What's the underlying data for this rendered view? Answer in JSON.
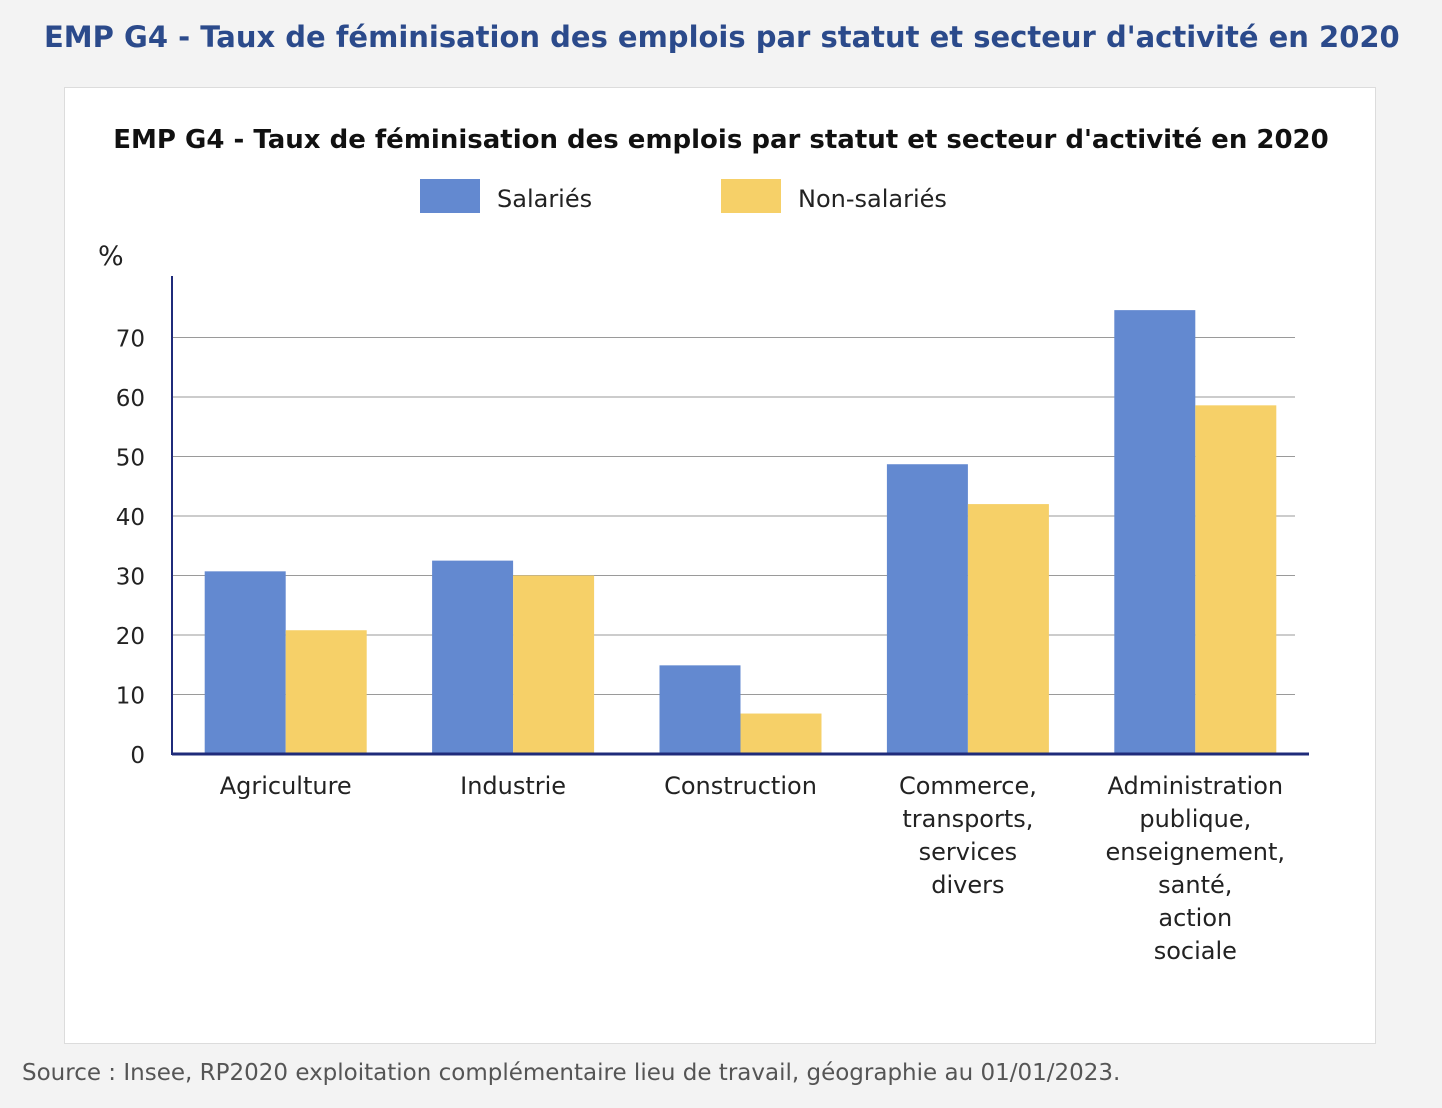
{
  "page": {
    "heading": "EMP G4 - Taux de féminisation des emplois par statut et secteur d'activité en 2020",
    "source": "Source : Insee, RP2020 exploitation complémentaire lieu de travail, géographie au 01/01/2023."
  },
  "chart_data": {
    "type": "bar",
    "title": "EMP G4 - Taux de féminisation des emplois par statut et secteur d'activité en 2020",
    "ylabel": "%",
    "xlabel": "",
    "ylim": [
      0,
      80
    ],
    "yticks": [
      0,
      10,
      20,
      30,
      40,
      50,
      60,
      70
    ],
    "grid": true,
    "legend_position": "top",
    "categories": [
      [
        "Agriculture"
      ],
      [
        "Industrie"
      ],
      [
        "Construction"
      ],
      [
        "Commerce,",
        "transports,",
        "services",
        "divers"
      ],
      [
        "Administration",
        "publique,",
        "enseignement,",
        "santé,",
        "action",
        "sociale"
      ]
    ],
    "series": [
      {
        "name": "Salariés",
        "color": "#6389d0",
        "values": [
          30.7,
          32.5,
          14.9,
          48.7,
          74.6
        ]
      },
      {
        "name": "Non-salariés",
        "color": "#f6d068",
        "values": [
          20.8,
          30.0,
          6.8,
          42.0,
          58.6
        ]
      }
    ]
  }
}
